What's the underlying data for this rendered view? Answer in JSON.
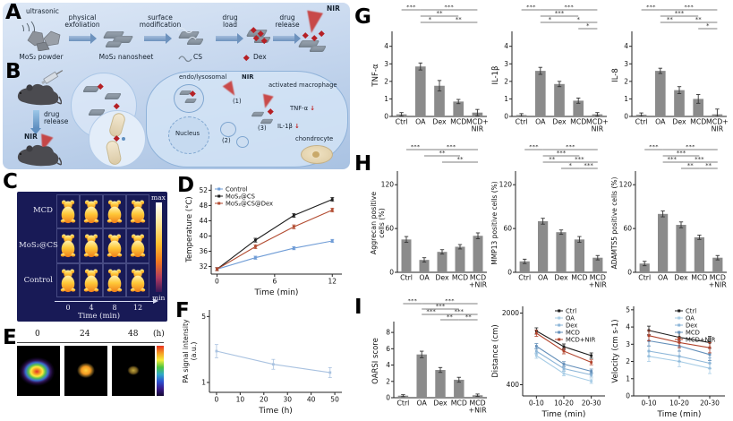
{
  "figure": {
    "panel_labels": {
      "A": "A",
      "B": "B",
      "C": "C",
      "D": "D",
      "E": "E",
      "F": "F",
      "G": "G",
      "H": "H",
      "I": "I"
    }
  },
  "colors": {
    "schematic_bg_top": "#dde8f6",
    "schematic_bg_bottom": "#a9c2e2",
    "thermal_panel_bg": "#181a56",
    "nir_red": "#c42420",
    "bar_gray": "#8b8b8b"
  },
  "panels": {
    "A": {
      "ultrasonic": "ultrasonic",
      "steps": [
        "physical\nexfoliation",
        "surface\nmodification",
        "drug\nload",
        "drug\nrelease"
      ],
      "nir": "NIR",
      "legend": [
        "MoS₂ powder",
        "MoS₂ nanosheet",
        "CS",
        "Dex"
      ]
    },
    "B": {
      "drug_release": "drug\nrelease",
      "nir_mouse": "NIR",
      "endo": "endo/lysosomal",
      "nir_cell": "NIR",
      "step1": "(1)",
      "step2": "(2)",
      "step3": "(3)",
      "activated": "activated macrophage",
      "nucleus": "Nucleus",
      "tnf": "TNF-α",
      "il1b": "IL-1β",
      "arrow_down": "↓",
      "chondrocyte": "chondrocyte"
    },
    "C": {
      "rows": [
        "MCD",
        "MoS₂@CS",
        "Control"
      ],
      "xticks": [
        "0",
        "4",
        "8",
        "12"
      ],
      "xlabel": "Time (min)",
      "cbar_max": "max",
      "cbar_min": "min"
    },
    "E": {
      "xticks": [
        "0",
        "24",
        "48"
      ],
      "unit": "(h)"
    }
  },
  "chart_data": [
    {
      "id": "temperature",
      "type": "line",
      "xlabel": "Time (min)",
      "ylabel": "Temperature (°C)",
      "x": [
        0,
        4,
        8,
        12
      ],
      "xlim": [
        -0.6,
        13
      ],
      "xticks": [
        0,
        6,
        12
      ],
      "ylim": [
        30,
        53.5
      ],
      "yticks": [
        32,
        36,
        40,
        44,
        48,
        52
      ],
      "legend_pos": "tl",
      "ml": 30,
      "ylx": 8,
      "series": [
        {
          "name": "Control",
          "color": "#6f9cd6",
          "values": [
            31.3,
            34.3,
            36.8,
            38.7
          ],
          "errors": [
            0.4,
            0.4,
            0.4,
            0.4
          ]
        },
        {
          "name": "MoS₂@CS",
          "color": "#1c1c1c",
          "values": [
            31.3,
            38.9,
            45.4,
            49.6
          ],
          "errors": [
            0.4,
            0.5,
            0.5,
            0.5
          ]
        },
        {
          "name": "MoS₂@CS@Dex",
          "color": "#b24b30",
          "values": [
            31.3,
            37.2,
            42.4,
            46.8
          ],
          "errors": [
            0.4,
            0.5,
            0.5,
            0.5
          ]
        }
      ]
    },
    {
      "id": "pa_signal",
      "type": "line",
      "xlabel": "Time (h)",
      "ylabel": "PA signal intensity\n(a.u.)",
      "x": [
        0,
        24,
        48
      ],
      "xlim": [
        -3,
        53
      ],
      "xticks": [
        0,
        10,
        20,
        30,
        40,
        50
      ],
      "ylim": [
        0.4,
        5.4
      ],
      "yticks": [
        1,
        5
      ],
      "legend_pos": null,
      "ml": 30,
      "ylx": 6,
      "ylf": 7.8,
      "series": [
        {
          "name": "PA signal",
          "color": "#a9c2e0",
          "values": [
            2.9,
            2.1,
            1.6
          ],
          "errors": [
            0.4,
            0.3,
            0.3
          ]
        }
      ]
    },
    {
      "id": "tnf",
      "type": "bar",
      "ylabel": "TNF-α",
      "categories": [
        "Ctrl",
        "OA",
        "Dex",
        "MCD",
        "MCD+\nNIR"
      ],
      "values": [
        0.12,
        2.85,
        1.75,
        0.85,
        0.22
      ],
      "errors": [
        0.1,
        0.2,
        0.3,
        0.12,
        0.18
      ],
      "ylim": [
        0,
        4.7
      ],
      "yticks": [
        0,
        1,
        2,
        3,
        4
      ],
      "bar_color": "#8b8b8b",
      "ml": 24,
      "ylx": 8,
      "sig": [
        {
          "i": 0,
          "j": 1,
          "t": "***",
          "row": 0
        },
        {
          "i": 1,
          "j": 4,
          "t": "***",
          "row": 0
        },
        {
          "i": 1,
          "j": 3,
          "t": "**",
          "row": 1
        },
        {
          "i": 1,
          "j": 2,
          "t": "*",
          "row": 2
        },
        {
          "i": 2,
          "j": 4,
          "t": "**",
          "row": 2
        }
      ]
    },
    {
      "id": "il1b",
      "type": "bar",
      "ylabel": "IL-1β",
      "categories": [
        "Ctrl",
        "OA",
        "Dex",
        "MCD",
        "MCD+\nNIR"
      ],
      "values": [
        0.08,
        2.6,
        1.85,
        0.9,
        0.12
      ],
      "errors": [
        0.08,
        0.2,
        0.15,
        0.15,
        0.1
      ],
      "ylim": [
        0,
        4.7
      ],
      "yticks": [
        0,
        1,
        2,
        3,
        4
      ],
      "bar_color": "#8b8b8b",
      "ml": 24,
      "ylx": 8,
      "sig": [
        {
          "i": 0,
          "j": 1,
          "t": "***",
          "row": 0
        },
        {
          "i": 1,
          "j": 4,
          "t": "***",
          "row": 0
        },
        {
          "i": 1,
          "j": 3,
          "t": "***",
          "row": 1
        },
        {
          "i": 1,
          "j": 2,
          "t": "*",
          "row": 2
        },
        {
          "i": 2,
          "j": 4,
          "t": "*",
          "row": 2
        },
        {
          "i": 3,
          "j": 4,
          "t": "*",
          "row": 3
        }
      ]
    },
    {
      "id": "il8",
      "type": "bar",
      "ylabel": "IL-8",
      "categories": [
        "Ctrl",
        "OA",
        "Dex",
        "MCD",
        "MCD+\nNIR"
      ],
      "values": [
        0.1,
        2.6,
        1.5,
        1.0,
        0.12
      ],
      "errors": [
        0.1,
        0.15,
        0.2,
        0.25,
        0.3
      ],
      "ylim": [
        0,
        4.7
      ],
      "yticks": [
        0,
        1,
        2,
        3,
        4
      ],
      "bar_color": "#8b8b8b",
      "ml": 24,
      "ylx": 8,
      "sig": [
        {
          "i": 0,
          "j": 1,
          "t": "***",
          "row": 0
        },
        {
          "i": 1,
          "j": 4,
          "t": "***",
          "row": 0
        },
        {
          "i": 1,
          "j": 3,
          "t": "***",
          "row": 1
        },
        {
          "i": 1,
          "j": 2,
          "t": "**",
          "row": 2
        },
        {
          "i": 2,
          "j": 4,
          "t": "**",
          "row": 2
        },
        {
          "i": 3,
          "j": 4,
          "t": "*",
          "row": 3
        }
      ]
    },
    {
      "id": "aggrecan",
      "type": "bar",
      "ylabel": "Aggrecan positive\ncells (%)",
      "categories": [
        "Ctrl",
        "OA",
        "Dex",
        "MCD",
        "MCD\n+NIR"
      ],
      "values": [
        45,
        17,
        28,
        35,
        50
      ],
      "errors": [
        4,
        3,
        3,
        3,
        4
      ],
      "ylim": [
        0,
        135
      ],
      "yticks": [
        0,
        60,
        120
      ],
      "bar_color": "#8b8b8b",
      "ml": 30,
      "ylx": 6,
      "ylf": 7.8,
      "sig": [
        {
          "i": 0,
          "j": 1,
          "t": "***",
          "row": 0
        },
        {
          "i": 1,
          "j": 4,
          "t": "***",
          "row": 0
        },
        {
          "i": 1,
          "j": 3,
          "t": "**",
          "row": 1
        },
        {
          "i": 2,
          "j": 4,
          "t": "**",
          "row": 2
        }
      ]
    },
    {
      "id": "mmp13",
      "type": "bar",
      "ylabel": "MMP13 positive cells (%)",
      "categories": [
        "Ctrl",
        "OA",
        "Dex",
        "MCD",
        "MCD\n+NIR"
      ],
      "values": [
        15,
        70,
        55,
        45,
        20
      ],
      "errors": [
        3,
        4,
        3,
        4,
        3
      ],
      "ylim": [
        0,
        135
      ],
      "yticks": [
        0,
        60,
        120
      ],
      "bar_color": "#8b8b8b",
      "ml": 28,
      "ylx": 7,
      "ylf": 7.5,
      "sig": [
        {
          "i": 0,
          "j": 1,
          "t": "***",
          "row": 0
        },
        {
          "i": 1,
          "j": 4,
          "t": "***",
          "row": 0
        },
        {
          "i": 1,
          "j": 3,
          "t": "***",
          "row": 1
        },
        {
          "i": 1,
          "j": 2,
          "t": "**",
          "row": 2
        },
        {
          "i": 2,
          "j": 4,
          "t": "***",
          "row": 2
        },
        {
          "i": 2,
          "j": 3,
          "t": "*",
          "row": 3
        },
        {
          "i": 3,
          "j": 4,
          "t": "***",
          "row": 3
        }
      ]
    },
    {
      "id": "adamts5",
      "type": "bar",
      "ylabel": "ADAMTS5 positive cells (%)",
      "categories": [
        "Ctrl",
        "OA",
        "Dex",
        "MCD",
        "MCD\n+NIR"
      ],
      "values": [
        12,
        80,
        65,
        48,
        20
      ],
      "errors": [
        3,
        4,
        4,
        3,
        3
      ],
      "ylim": [
        0,
        135
      ],
      "yticks": [
        0,
        60,
        120
      ],
      "bar_color": "#8b8b8b",
      "ml": 28,
      "ylx": 7,
      "ylf": 7.5,
      "sig": [
        {
          "i": 0,
          "j": 1,
          "t": "***",
          "row": 0
        },
        {
          "i": 1,
          "j": 4,
          "t": "***",
          "row": 0
        },
        {
          "i": 1,
          "j": 3,
          "t": "***",
          "row": 1
        },
        {
          "i": 1,
          "j": 2,
          "t": "***",
          "row": 2
        },
        {
          "i": 2,
          "j": 4,
          "t": "***",
          "row": 2
        },
        {
          "i": 2,
          "j": 3,
          "t": "**",
          "row": 3
        },
        {
          "i": 3,
          "j": 4,
          "t": "**",
          "row": 3
        }
      ]
    },
    {
      "id": "oarsi",
      "type": "bar",
      "ylabel": "OARSI score",
      "categories": [
        "Ctrl",
        "OA",
        "Dex",
        "MCD",
        "MCD\n+NIR"
      ],
      "values": [
        0.25,
        5.3,
        3.4,
        2.2,
        0.3
      ],
      "errors": [
        0.12,
        0.4,
        0.3,
        0.3,
        0.15
      ],
      "ylim": [
        0,
        9
      ],
      "yticks": [
        0,
        2,
        4,
        6,
        8
      ],
      "bar_color": "#8b8b8b",
      "ml": 26,
      "ylx": 8,
      "sig_dy": 6,
      "mt": 28,
      "sig": [
        {
          "i": 0,
          "j": 1,
          "t": "***",
          "row": 0
        },
        {
          "i": 1,
          "j": 4,
          "t": "***",
          "row": 0
        },
        {
          "i": 1,
          "j": 3,
          "t": "***",
          "row": 1
        },
        {
          "i": 1,
          "j": 2,
          "t": "***",
          "row": 2
        },
        {
          "i": 2,
          "j": 4,
          "t": "***",
          "row": 2
        },
        {
          "i": 2,
          "j": 3,
          "t": "**",
          "row": 3
        },
        {
          "i": 3,
          "j": 4,
          "t": "**",
          "row": 3
        }
      ]
    },
    {
      "id": "distance",
      "type": "line",
      "xlabel": "Time (min)",
      "ylabel": "Distance (cm)",
      "xticklabels": [
        "0-10",
        "10-20",
        "20-30"
      ],
      "ylim": [
        150,
        2150
      ],
      "yticks": [
        400,
        2000
      ],
      "legend_pos": "tr",
      "ml": 36,
      "ylx": 8,
      "series": [
        {
          "name": "Ctrl",
          "color": "#1c1c1c",
          "values": [
            1600,
            1250,
            1050
          ],
          "errors": [
            70,
            60,
            60
          ]
        },
        {
          "name": "OA",
          "color": "#a8cde6",
          "values": [
            1050,
            650,
            480
          ],
          "errors": [
            60,
            50,
            50
          ]
        },
        {
          "name": "Dex",
          "color": "#8db6d8",
          "values": [
            1150,
            760,
            620
          ],
          "errors": [
            60,
            50,
            50
          ]
        },
        {
          "name": "MCD",
          "color": "#6590ba",
          "values": [
            1260,
            860,
            700
          ],
          "errors": [
            60,
            55,
            50
          ]
        },
        {
          "name": "MCD+NIR",
          "color": "#b2432c",
          "values": [
            1550,
            1150,
            900
          ],
          "errors": [
            70,
            60,
            55
          ]
        }
      ]
    },
    {
      "id": "velocity",
      "type": "line",
      "xlabel": "Time (min)",
      "ylabel": "Velocity (cm s-1)",
      "xticklabels": [
        "0-10",
        "10-20",
        "20-30"
      ],
      "ylim": [
        0,
        5.2
      ],
      "yticks": [
        0,
        1,
        2,
        3,
        4,
        5
      ],
      "legend_pos": "tr",
      "ml": 26,
      "ylx": 8,
      "series": [
        {
          "name": "Ctrl",
          "color": "#1c1c1c",
          "values": [
            3.8,
            3.4,
            3.1
          ],
          "errors": [
            0.25,
            0.3,
            0.35
          ]
        },
        {
          "name": "OA",
          "color": "#a8cde6",
          "values": [
            2.3,
            2.0,
            1.6
          ],
          "errors": [
            0.3,
            0.3,
            0.3
          ]
        },
        {
          "name": "Dex",
          "color": "#8db6d8",
          "values": [
            2.6,
            2.3,
            1.9
          ],
          "errors": [
            0.3,
            0.3,
            0.3
          ]
        },
        {
          "name": "MCD",
          "color": "#6590ba",
          "values": [
            3.2,
            2.9,
            2.4
          ],
          "errors": [
            0.3,
            0.3,
            0.35
          ]
        },
        {
          "name": "MCD+NIR",
          "color": "#b2432c",
          "values": [
            3.5,
            3.1,
            2.8
          ],
          "errors": [
            0.3,
            0.3,
            0.3
          ]
        }
      ]
    }
  ]
}
